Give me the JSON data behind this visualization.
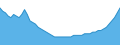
{
  "values": [
    23,
    21,
    20,
    18,
    17,
    19,
    18,
    17,
    19,
    22,
    19,
    15,
    14,
    13,
    11,
    10,
    9,
    8,
    7,
    6,
    5,
    5,
    5,
    5,
    5,
    5,
    5,
    6,
    6,
    6,
    6,
    7,
    7,
    7,
    8,
    8,
    9,
    9,
    10,
    11,
    13,
    15,
    17,
    20,
    23
  ],
  "line_color": "#2b8fc9",
  "fill_color": "#5ab3e8",
  "background_color": "#ffffff",
  "ylim_min": 0,
  "ylim_max": 28
}
